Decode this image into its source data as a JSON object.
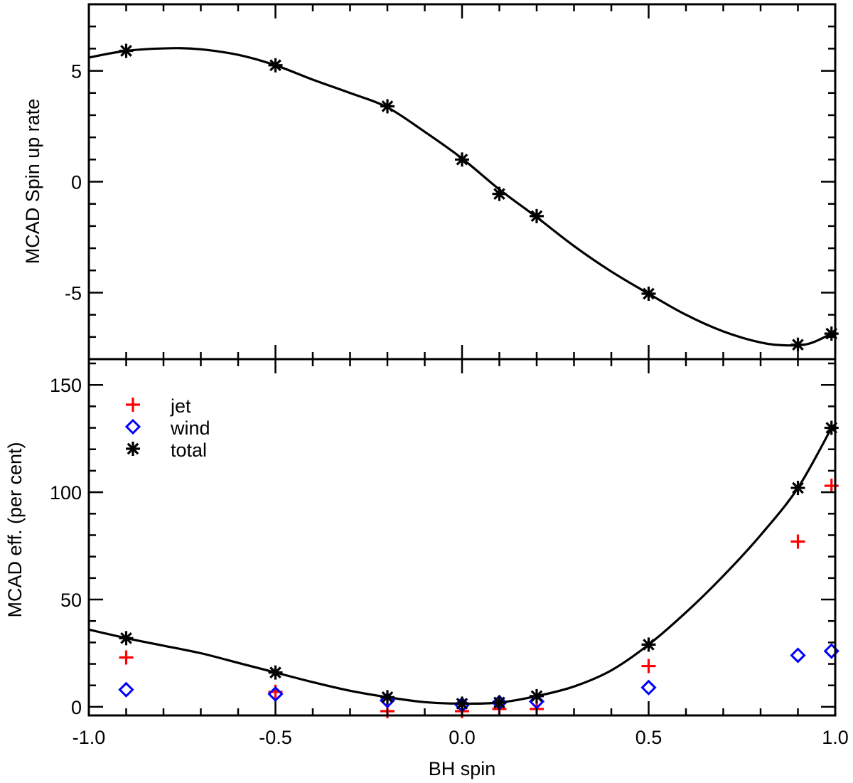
{
  "chart_data": [
    {
      "type": "scatter",
      "panel": "top",
      "xlabel": "BH spin",
      "ylabel": "MCAD Spin up rate",
      "xlim": [
        -1.0,
        1.0
      ],
      "ylim": [
        -8.0,
        8.0
      ],
      "xticks": [
        -1.0,
        -0.5,
        0.0,
        0.5,
        1.0
      ],
      "yticks": [
        5,
        0,
        -5
      ],
      "ytick_labels": [
        "5",
        "0",
        "-5"
      ],
      "series": [
        {
          "name": "total",
          "marker": "asterisk",
          "color": "#000000",
          "x": [
            -0.9,
            -0.5,
            -0.2,
            0.0,
            0.1,
            0.2,
            0.5,
            0.9,
            0.99
          ],
          "y": [
            5.9,
            5.25,
            3.4,
            1.0,
            -0.55,
            -1.55,
            -5.05,
            -7.35,
            -6.85
          ]
        },
        {
          "name": "fit",
          "style": "line",
          "color": "#000000",
          "x": [
            -1.0,
            -0.9,
            -0.78,
            -0.7,
            -0.6,
            -0.5,
            -0.4,
            -0.3,
            -0.2,
            -0.1,
            0.0,
            0.1,
            0.2,
            0.3,
            0.4,
            0.5,
            0.6,
            0.7,
            0.8,
            0.87,
            0.93,
            0.99
          ],
          "y": [
            5.6,
            5.9,
            6.02,
            5.97,
            5.72,
            5.25,
            4.6,
            4.0,
            3.35,
            2.25,
            1.05,
            -0.35,
            -1.6,
            -2.9,
            -4.05,
            -5.05,
            -6.0,
            -6.75,
            -7.25,
            -7.38,
            -7.3,
            -6.85
          ]
        }
      ]
    },
    {
      "type": "scatter",
      "panel": "bottom",
      "xlabel": "BH spin",
      "ylabel": "MCAD eff. (per cent)",
      "xlim": [
        -1.0,
        1.0
      ],
      "ylim": [
        -4,
        162
      ],
      "xticks": [
        -1.0,
        -0.5,
        0.0,
        0.5,
        1.0
      ],
      "xtick_labels": [
        "-1.0",
        "-0.5",
        "0.0",
        "0.5",
        "1.0"
      ],
      "yticks": [
        0,
        50,
        100,
        150
      ],
      "ytick_labels": [
        "0",
        "50",
        "100",
        "150"
      ],
      "legend": {
        "placement": "top-left",
        "entries": [
          {
            "label": "jet",
            "marker": "plus",
            "color": "#ff0000"
          },
          {
            "label": "wind",
            "marker": "diamond",
            "color": "#0000ff"
          },
          {
            "label": "total",
            "marker": "asterisk",
            "color": "#000000"
          }
        ]
      },
      "series": [
        {
          "name": "jet",
          "marker": "plus",
          "color": "#ff0000",
          "x": [
            -0.9,
            -0.5,
            -0.2,
            0.0,
            0.1,
            0.2,
            0.5,
            0.9,
            0.99
          ],
          "y": [
            23,
            7,
            -2,
            -2,
            -1,
            -1,
            19,
            77,
            103
          ]
        },
        {
          "name": "wind",
          "marker": "diamond",
          "color": "#0000ff",
          "x": [
            -0.9,
            -0.5,
            -0.2,
            0.0,
            0.1,
            0.2,
            0.5,
            0.9,
            0.99
          ],
          "y": [
            8,
            6,
            3,
            1,
            2,
            2.5,
            9,
            24,
            26
          ]
        },
        {
          "name": "total",
          "marker": "asterisk",
          "color": "#000000",
          "x": [
            -0.9,
            -0.5,
            -0.2,
            0.0,
            0.1,
            0.2,
            0.5,
            0.9,
            0.99
          ],
          "y": [
            32,
            16,
            4.5,
            1.5,
            2,
            5,
            29,
            102,
            130
          ]
        },
        {
          "name": "fit",
          "style": "line",
          "color": "#000000",
          "x": [
            -1.0,
            -0.9,
            -0.8,
            -0.7,
            -0.6,
            -0.5,
            -0.4,
            -0.3,
            -0.2,
            -0.1,
            0.0,
            0.1,
            0.2,
            0.3,
            0.4,
            0.5,
            0.6,
            0.7,
            0.8,
            0.9,
            0.99
          ],
          "y": [
            36,
            32,
            28.5,
            25,
            20.5,
            16,
            11.5,
            7.5,
            4.5,
            2.2,
            1.5,
            2,
            5,
            9.5,
            17,
            29,
            44,
            61,
            80,
            102,
            130
          ]
        }
      ]
    }
  ]
}
